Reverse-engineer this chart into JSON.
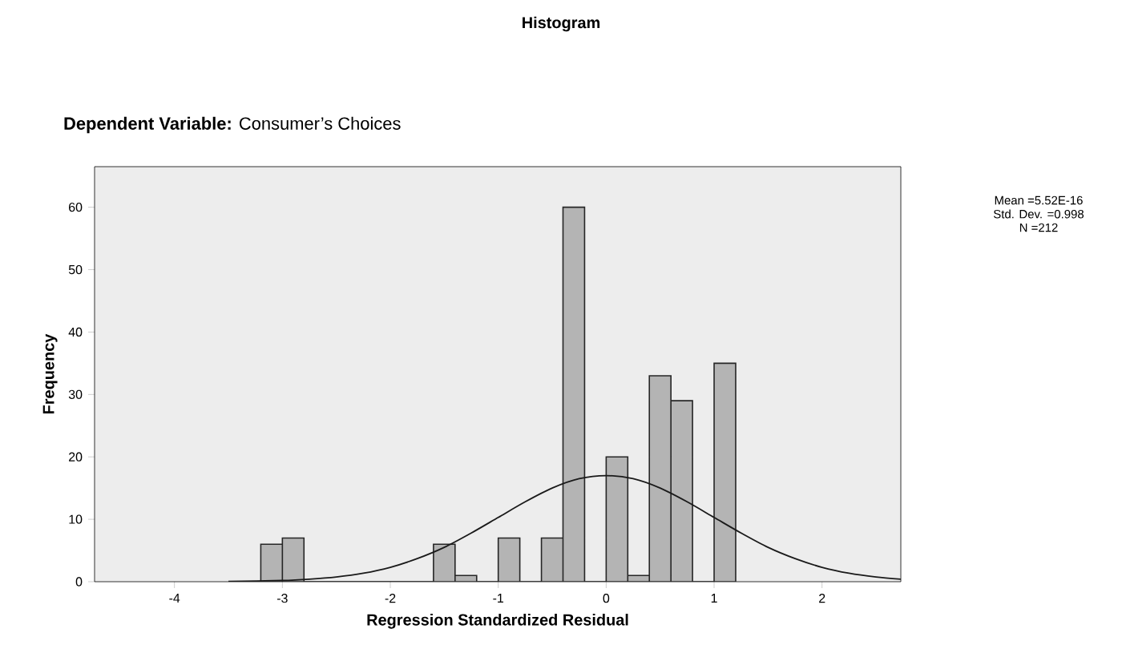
{
  "chart_data": {
    "type": "histogram",
    "title": "Histogram",
    "subtitle": "**Dependent Variable:** Consumer’s Choices",
    "xlabel": "Regression Standardized Residual",
    "ylabel": "Frequency",
    "bins": [
      -3.2,
      -3.0,
      -2.8,
      -2.6,
      -2.4,
      -2.2,
      -2.0,
      -1.8,
      -1.6,
      -1.4,
      -1.2,
      -1.0,
      -0.8,
      -0.6,
      -0.4,
      -0.2,
      0.0,
      0.2,
      0.4,
      0.6,
      0.8,
      1.0,
      1.2
    ],
    "values": [
      6,
      7,
      0,
      0,
      0,
      0,
      0,
      0,
      6,
      1,
      0,
      7,
      0,
      7,
      60,
      0,
      20,
      1,
      33,
      29,
      0,
      35
    ],
    "color": "#b4b4b4",
    "series": [
      {
        "type": "line",
        "color": "#1a1a1a",
        "x": [
          -3.5,
          -3.0,
          -2.75,
          -2.5,
          -2.25,
          -2.0,
          -1.75,
          -1.5,
          -1.25,
          -1.0,
          -0.75,
          -0.5,
          -0.25,
          0.0,
          0.25,
          0.5,
          0.75,
          1.0,
          1.25,
          1.5,
          1.75,
          2.0,
          2.25,
          2.5,
          2.73
        ],
        "values": [
          0.04,
          0.19,
          0.4,
          0.75,
          1.35,
          2.3,
          3.7,
          5.5,
          7.8,
          10.3,
          12.8,
          15,
          16.5,
          17,
          16.5,
          15,
          12.8,
          10.3,
          7.8,
          5.5,
          3.7,
          2.3,
          1.35,
          0.75,
          0.4
        ]
      }
    ],
    "xlim": [
      -4.74,
      2.73
    ],
    "ylim": [
      0,
      66.5
    ],
    "xticks": [
      -4,
      -3,
      -2,
      -1,
      0,
      1,
      2
    ],
    "yticks": [
      0,
      10,
      20,
      30,
      40,
      50,
      60
    ],
    "annotations": [
      "Mean =5.52E-16",
      "Std. Dev. =0.998",
      "N =212"
    ]
  }
}
